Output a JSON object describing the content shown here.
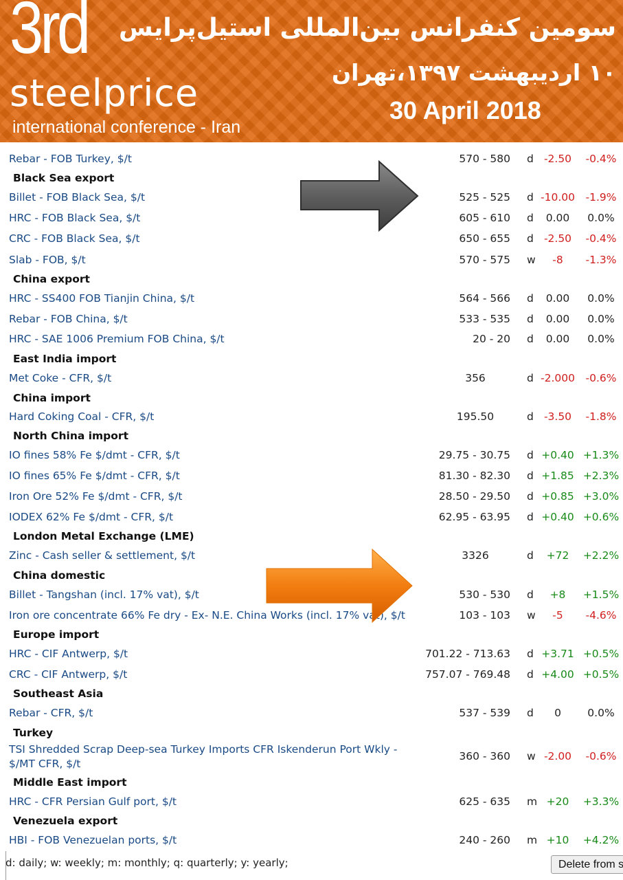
{
  "banner": {
    "logo_number": "3rd",
    "logo_word": "steelprice",
    "logo_subtitle": "international conference - Iran",
    "title_fa": "سومین کنفرانس بین‌المللی استیل‌پرایس",
    "date_fa": "۱۰ اردیبهشت ۱۳۹۷،تهران",
    "date_en": "30 April 2018"
  },
  "colors": {
    "banner": "#e06a12",
    "link": "#1a4a85",
    "negative": "#d11f1f",
    "positive": "#188a18"
  },
  "rows": [
    {
      "type": "item",
      "name": "Rebar - FOB Turkey, $/t",
      "price": "570 - 580",
      "freq": "d",
      "change": "-2.50",
      "pct": "-0.4%",
      "sign": "neg"
    },
    {
      "type": "header",
      "name": "Black Sea export"
    },
    {
      "type": "item",
      "name": "Billet - FOB Black Sea, $/t",
      "price": "525 - 525",
      "freq": "d",
      "change": "-10.00",
      "pct": "-1.9%",
      "sign": "neg"
    },
    {
      "type": "item",
      "name": "HRC - FOB Black Sea, $/t",
      "price": "605 - 610",
      "freq": "d",
      "change": "0.00",
      "pct": "0.0%",
      "sign": "zero"
    },
    {
      "type": "item",
      "name": "CRC - FOB Black Sea, $/t",
      "price": "650 - 655",
      "freq": "d",
      "change": "-2.50",
      "pct": "-0.4%",
      "sign": "neg"
    },
    {
      "type": "item",
      "name": "Slab - FOB, $/t",
      "price": "570 - 575",
      "freq": "w",
      "change": "-8",
      "pct": "-1.3%",
      "sign": "neg"
    },
    {
      "type": "header",
      "name": "China export"
    },
    {
      "type": "item",
      "name": "HRC - SS400 FOB Tianjin China, $/t",
      "price": "564 - 566",
      "freq": "d",
      "change": "0.00",
      "pct": "0.0%",
      "sign": "zero"
    },
    {
      "type": "item",
      "name": "Rebar - FOB China, $/t",
      "price": "533 - 535",
      "freq": "d",
      "change": "0.00",
      "pct": "0.0%",
      "sign": "zero"
    },
    {
      "type": "item",
      "name": "HRC - SAE 1006 Premium FOB China, $/t",
      "price": "20 - 20",
      "freq": "d",
      "change": "0.00",
      "pct": "0.0%",
      "sign": "zero"
    },
    {
      "type": "header",
      "name": "East India import"
    },
    {
      "type": "item",
      "name": "Met Coke - CFR, $/t",
      "price": "356",
      "freq": "d",
      "change": "-2.000",
      "pct": "-0.6%",
      "sign": "neg",
      "center": true
    },
    {
      "type": "header",
      "name": "China import"
    },
    {
      "type": "item",
      "name": "Hard Coking Coal - CFR, $/t",
      "price": "195.50",
      "freq": "d",
      "change": "-3.50",
      "pct": "-1.8%",
      "sign": "neg",
      "center": true
    },
    {
      "type": "header",
      "name": "North China import"
    },
    {
      "type": "item",
      "name": "IO fines 58% Fe $/dmt - CFR, $/t",
      "price": "29.75 - 30.75",
      "freq": "d",
      "change": "+0.40",
      "pct": "+1.3%",
      "sign": "pos"
    },
    {
      "type": "item",
      "name": "IO fines 65% Fe $/dmt - CFR, $/t",
      "price": "81.30 - 82.30",
      "freq": "d",
      "change": "+1.85",
      "pct": "+2.3%",
      "sign": "pos"
    },
    {
      "type": "item",
      "name": "Iron Ore 52% Fe $/dmt - CFR, $/t",
      "price": "28.50 - 29.50",
      "freq": "d",
      "change": "+0.85",
      "pct": "+3.0%",
      "sign": "pos"
    },
    {
      "type": "item",
      "name": "IODEX 62% Fe $/dmt - CFR, $/t",
      "price": "62.95 - 63.95",
      "freq": "d",
      "change": "+0.40",
      "pct": "+0.6%",
      "sign": "pos"
    },
    {
      "type": "header",
      "name": "London Metal Exchange (LME)"
    },
    {
      "type": "item",
      "name": "Zinc - Cash seller & settlement, $/t",
      "price": "3326",
      "freq": "d",
      "change": "+72",
      "pct": "+2.2%",
      "sign": "pos",
      "center": true
    },
    {
      "type": "header",
      "name": "China domestic"
    },
    {
      "type": "item",
      "name": "Billet - Tangshan (incl. 17% vat), $/t",
      "price": "530 - 530",
      "freq": "d",
      "change": "+8",
      "pct": "+1.5%",
      "sign": "pos"
    },
    {
      "type": "item",
      "name": "Iron ore concentrate 66% Fe dry - Ex- N.E. China Works (incl. 17% vat), $/t",
      "price": "103 - 103",
      "freq": "w",
      "change": "-5",
      "pct": "-4.6%",
      "sign": "neg"
    },
    {
      "type": "header",
      "name": "Europe import"
    },
    {
      "type": "item",
      "name": "HRC - CIF Antwerp, $/t",
      "price": "701.22 - 713.63",
      "freq": "d",
      "change": "+3.71",
      "pct": "+0.5%",
      "sign": "pos"
    },
    {
      "type": "item",
      "name": "CRC - CIF Antwerp, $/t",
      "price": "757.07 - 769.48",
      "freq": "d",
      "change": "+4.00",
      "pct": "+0.5%",
      "sign": "pos"
    },
    {
      "type": "header",
      "name": "Southeast Asia"
    },
    {
      "type": "item",
      "name": "Rebar - CFR, $/t",
      "price": "537 - 539",
      "freq": "d",
      "change": "0",
      "pct": "0.0%",
      "sign": "zero"
    },
    {
      "type": "header",
      "name": "Turkey"
    },
    {
      "type": "item",
      "name": "TSI Shredded Scrap Deep-sea Turkey Imports CFR Iskenderun Port Wkly - $/MT CFR, $/t",
      "price": "360 - 360",
      "freq": "w",
      "change": "-2.00",
      "pct": "-0.6%",
      "sign": "neg",
      "wrap": true
    },
    {
      "type": "header",
      "name": "Middle East import"
    },
    {
      "type": "item",
      "name": "HRC - CFR Persian Gulf port, $/t",
      "price": "625 - 635",
      "freq": "m",
      "change": "+20",
      "pct": "+3.3%",
      "sign": "pos"
    },
    {
      "type": "header",
      "name": "Venezuela export"
    },
    {
      "type": "item",
      "name": "HBI - FOB Venezuelan ports, $/t",
      "price": "240 - 260",
      "freq": "m",
      "change": "+10",
      "pct": "+4.2%",
      "sign": "pos"
    }
  ],
  "footer": {
    "legend": "d: daily; w: weekly; m: monthly; q: quarterly; y: yearly;",
    "delete_button": "Delete from s"
  }
}
